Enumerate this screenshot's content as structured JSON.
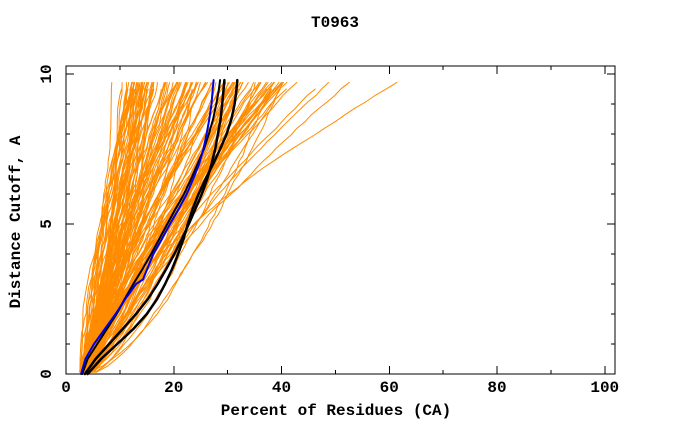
{
  "window": {
    "background": "#ffffff"
  },
  "chart_data": {
    "type": "line",
    "title": "T0963",
    "xlabel": "Percent of Residues (CA)",
    "ylabel": "Distance Cutoff, A",
    "xlim": [
      0,
      101.9
    ],
    "ylim": [
      0,
      10.27
    ],
    "grid": false,
    "frame_ticks_mirrored": true,
    "x_major_ticks": [
      0,
      20,
      40,
      60,
      80,
      100
    ],
    "x_minor_ticks": [
      10,
      30,
      50,
      70,
      90
    ],
    "y_major_ticks": [
      0,
      5,
      10
    ],
    "y_minor_ticks": [
      1,
      2,
      3,
      4,
      6,
      7,
      8,
      9
    ],
    "colors": {
      "frame": "#000000",
      "ensemble": "#FF8C00",
      "special": "#000000",
      "highlight": "#0000E6"
    },
    "series": [
      {
        "name": "black-model-1",
        "color_key": "special",
        "width": 2,
        "points": [
          [
            0,
            3.0
          ],
          [
            0.5,
            4.0
          ],
          [
            1,
            5.8
          ],
          [
            1.5,
            7.6
          ],
          [
            2,
            9.4
          ],
          [
            2.5,
            10.9
          ],
          [
            3,
            12.5
          ],
          [
            3.5,
            14.2
          ],
          [
            4,
            15.8
          ],
          [
            4.5,
            17.3
          ],
          [
            5,
            18.8
          ],
          [
            5.5,
            20.3
          ],
          [
            6,
            21.9
          ],
          [
            6.5,
            23.2
          ],
          [
            7,
            24.4
          ],
          [
            7.5,
            25.6
          ],
          [
            8,
            26.5
          ],
          [
            8.5,
            27.3
          ],
          [
            9,
            27.9
          ],
          [
            9.4,
            28.3
          ],
          [
            9.8,
            28.6
          ]
        ]
      },
      {
        "name": "black-model-2",
        "color_key": "special",
        "width": 2.5,
        "points": [
          [
            0,
            3.5
          ],
          [
            0.5,
            5.5
          ],
          [
            1,
            8.0
          ],
          [
            1.5,
            10.5
          ],
          [
            2,
            13.0
          ],
          [
            2.5,
            15.2
          ],
          [
            3,
            17.0
          ],
          [
            3.5,
            18.6
          ],
          [
            4,
            20.1
          ],
          [
            4.5,
            21.5
          ],
          [
            5,
            22.8
          ],
          [
            5.5,
            24.0
          ],
          [
            6,
            25.2
          ],
          [
            6.5,
            26.2
          ],
          [
            7,
            27.0
          ],
          [
            7.5,
            27.7
          ],
          [
            8,
            28.2
          ],
          [
            8.5,
            28.7
          ],
          [
            9,
            29.0
          ],
          [
            9.4,
            29.2
          ],
          [
            9.8,
            29.4
          ]
        ]
      },
      {
        "name": "black-model-3",
        "color_key": "special",
        "width": 2.5,
        "points": [
          [
            0,
            4.0
          ],
          [
            0.5,
            6.5
          ],
          [
            1,
            9.5
          ],
          [
            1.5,
            12.5
          ],
          [
            2,
            15.0
          ],
          [
            2.5,
            16.9
          ],
          [
            3,
            18.4
          ],
          [
            3.5,
            19.7
          ],
          [
            4,
            20.8
          ],
          [
            4.5,
            21.8
          ],
          [
            5,
            22.6
          ],
          [
            5.5,
            23.5
          ],
          [
            6,
            24.6
          ],
          [
            6.5,
            25.9
          ],
          [
            7,
            27.3
          ],
          [
            7.5,
            28.6
          ],
          [
            8,
            29.8
          ],
          [
            8.5,
            30.7
          ],
          [
            9,
            31.3
          ],
          [
            9.4,
            31.6
          ],
          [
            9.8,
            31.8
          ]
        ]
      },
      {
        "name": "blue-model",
        "color_key": "highlight",
        "width": 2,
        "points": [
          [
            0,
            2.8
          ],
          [
            0.5,
            3.6
          ],
          [
            1,
            5.2
          ],
          [
            1.5,
            7.2
          ],
          [
            2,
            9.2
          ],
          [
            2.5,
            11.0
          ],
          [
            3,
            13.0
          ],
          [
            3.15,
            14.3
          ],
          [
            3.6,
            15.3
          ],
          [
            4,
            16.2
          ],
          [
            4.5,
            17.8
          ],
          [
            5,
            19.3
          ],
          [
            5.5,
            20.9
          ],
          [
            6,
            22.4
          ],
          [
            6.5,
            23.6
          ],
          [
            7,
            24.7
          ],
          [
            7.5,
            25.5
          ],
          [
            8,
            26.1
          ],
          [
            8.5,
            26.6
          ],
          [
            9,
            27.0
          ],
          [
            9.4,
            27.2
          ],
          [
            9.8,
            27.4
          ]
        ]
      }
    ],
    "orange_ensemble": {
      "description": "server model curves",
      "count": 140,
      "seed": 20963,
      "start_pct_range": [
        2.5,
        5.0
      ],
      "steep_tops": [
        8,
        9.5,
        11
      ],
      "top_pct_bulk_range": [
        12,
        42
      ],
      "bulk_skew_exponent": 1.5,
      "outlier_tops": [
        44,
        47,
        50,
        53,
        63
      ],
      "shape_exponent_range": [
        0.6,
        1.5
      ],
      "outlier_shape_exponent_range": [
        1.2,
        1.6
      ],
      "cutoff_top": 9.8,
      "cutoff_step": 0.22,
      "wiggle": 0.5,
      "line_width": 1
    }
  }
}
